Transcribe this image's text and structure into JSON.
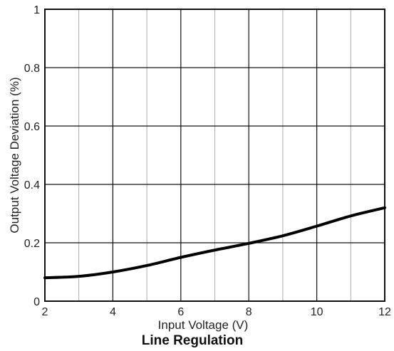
{
  "chart_data": {
    "type": "line",
    "title": "Line Regulation",
    "xlabel": "Input Voltage (V)",
    "ylabel": "Output Voltage Deviation (%)",
    "xlim": [
      2,
      12
    ],
    "ylim": [
      0,
      1
    ],
    "x_ticks": [
      "2",
      "4",
      "6",
      "8",
      "10",
      "12"
    ],
    "y_ticks": [
      "0",
      "0.2",
      "0.4",
      "0.6",
      "0.8",
      "1"
    ],
    "grid": true,
    "series": [
      {
        "x": [
          2,
          3,
          4,
          5,
          6,
          7,
          8,
          9,
          10,
          11,
          12
        ],
        "y": [
          0.08,
          0.085,
          0.1,
          0.122,
          0.15,
          0.175,
          0.198,
          0.224,
          0.257,
          0.292,
          0.32
        ]
      }
    ]
  }
}
